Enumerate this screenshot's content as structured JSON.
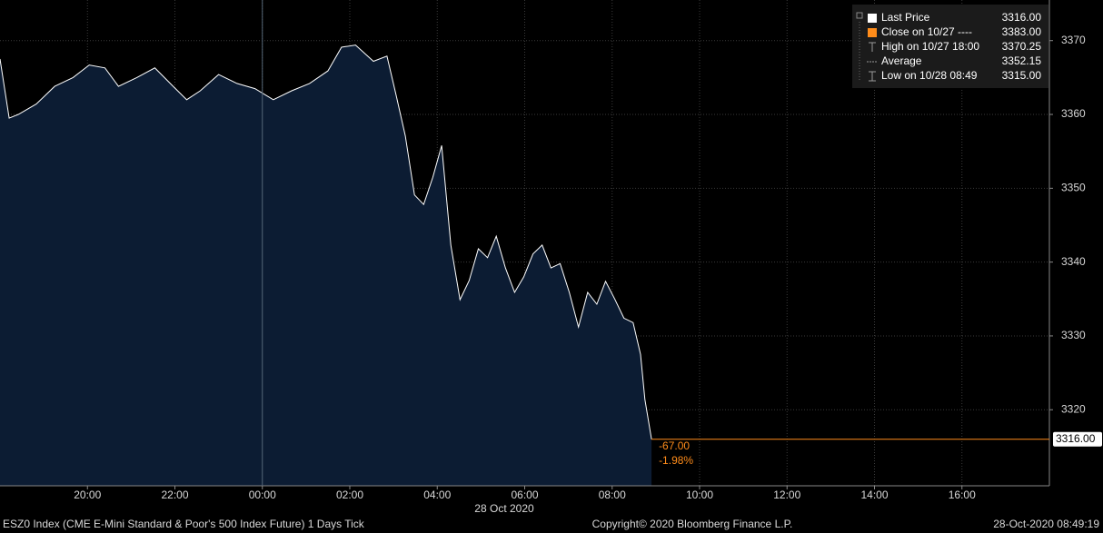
{
  "chart_data": {
    "type": "area",
    "title": "ESZ0 Index (CME E-Mini Standard & Poor's 500 Index Future) 1 Days  Tick",
    "copyright": "Copyright© 2020 Bloomberg Finance L.P.",
    "timestamp": "28-Oct-2020 08:49:19",
    "date_label": "28 Oct 2020",
    "x": [
      18,
      18.21,
      18.42,
      18.83,
      19.25,
      19.67,
      20.04,
      20.4,
      20.71,
      21.13,
      21.54,
      21.96,
      22.27,
      22.58,
      23,
      23.42,
      23.83,
      24.25,
      24.67,
      25.08,
      25.5,
      25.81,
      26.13,
      26.54,
      26.85,
      27.06,
      27.27,
      27.48,
      27.69,
      27.9,
      28.1,
      28.31,
      28.52,
      28.73,
      28.94,
      29.15,
      29.35,
      29.56,
      29.77,
      29.98,
      30.19,
      30.4,
      30.6,
      30.81,
      31.02,
      31.23,
      31.44,
      31.65,
      31.85,
      32.06,
      32.27,
      32.48,
      32.65,
      32.75,
      32.9
    ],
    "series": [
      {
        "name": "Last Price",
        "color": "#ffffff",
        "fill": "#0c1c33",
        "values": [
          3367.5,
          3359.5,
          3360,
          3361.4,
          3363.8,
          3365,
          3366.7,
          3366.3,
          3363.8,
          3365,
          3366.3,
          3363.8,
          3362,
          3363.2,
          3365.4,
          3364.2,
          3363.5,
          3362,
          3363.2,
          3364.2,
          3365.9,
          3369.1,
          3369.4,
          3367.2,
          3367.9,
          3362.6,
          3357.1,
          3349.1,
          3347.8,
          3351.5,
          3355.8,
          3342.3,
          3334.9,
          3337.5,
          3341.8,
          3340.6,
          3343.5,
          3339.2,
          3335.9,
          3338,
          3341.1,
          3342.3,
          3339.2,
          3339.8,
          3335.9,
          3331.2,
          3335.9,
          3334.3,
          3337.4,
          3335,
          3332.4,
          3331.8,
          3327.5,
          3321.4,
          3316
        ]
      }
    ],
    "xlim": [
      18,
      42
    ],
    "xticks": [
      {
        "value": 20,
        "label": "20:00"
      },
      {
        "value": 22,
        "label": "22:00"
      },
      {
        "value": 24,
        "label": "00:00"
      },
      {
        "value": 26,
        "label": "02:00"
      },
      {
        "value": 28,
        "label": "04:00"
      },
      {
        "value": 30,
        "label": "06:00"
      },
      {
        "value": 32,
        "label": "08:00"
      },
      {
        "value": 34,
        "label": "10:00"
      },
      {
        "value": 36,
        "label": "12:00"
      },
      {
        "value": 38,
        "label": "14:00"
      },
      {
        "value": 40,
        "label": "16:00"
      }
    ],
    "ylim": [
      3309.7,
      3375.5
    ],
    "yticks": [
      3320,
      3330,
      3340,
      3350,
      3360,
      3370
    ],
    "grid": true,
    "last_price": {
      "value": 3316,
      "label": "3316.00",
      "color": "#ff8c1a"
    },
    "change": {
      "value": -67,
      "label": "-67.00"
    },
    "change_pct": {
      "value": -1.98,
      "label": "-1.98%"
    },
    "legend": [
      {
        "name": "Last Price",
        "value": "3316.00"
      },
      {
        "name": "Close on 10/27  ----",
        "value": "3383.00"
      },
      {
        "name": "High on 10/27 18:00",
        "value": "3370.25"
      },
      {
        "name": "Average",
        "value": "3352.15"
      },
      {
        "name": "Low on 10/28 08:49",
        "value": "3315.00"
      }
    ]
  }
}
